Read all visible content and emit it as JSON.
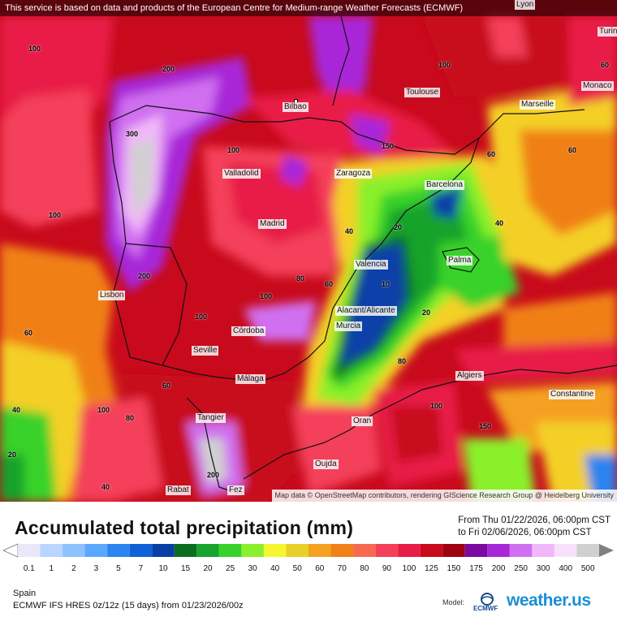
{
  "banner": "This service is based on data and products of the European Centre for Medium-range Weather Forecasts (ECMWF)",
  "attribution": "Map data © OpenStreetMap contributors, rendering GIScience Research Group @ Heidelberg University",
  "title": "Accumulated total precipitation (mm)",
  "period": {
    "from": "From Thu 01/22/2026, 06:00pm CST",
    "to": "to Fri 02/06/2026, 06:00pm CST"
  },
  "legend": {
    "values": [
      "0.1",
      "1",
      "2",
      "3",
      "5",
      "7",
      "10",
      "15",
      "20",
      "25",
      "30",
      "40",
      "50",
      "60",
      "70",
      "80",
      "90",
      "100",
      "125",
      "150",
      "175",
      "200",
      "250",
      "300",
      "400",
      "500"
    ],
    "colors": [
      "#e8e8f8",
      "#b8d6ff",
      "#8cc2ff",
      "#5aa8ff",
      "#2c84f0",
      "#1060d8",
      "#0a3fa8",
      "#0b6e1e",
      "#17a32c",
      "#37d22a",
      "#8af02c",
      "#f4f730",
      "#e8d028",
      "#f4a020",
      "#f08018",
      "#f86a50",
      "#f4405a",
      "#e81c46",
      "#c80a1c",
      "#a00010",
      "#7a0aa0",
      "#a828d8",
      "#d070f0",
      "#f0b8f8",
      "#f8e0fc",
      "#d0d0d0"
    ]
  },
  "cities": [
    {
      "name": "Bilbao"
    },
    {
      "name": "Toulouse"
    },
    {
      "name": "Marseille"
    },
    {
      "name": "Monaco"
    },
    {
      "name": "Valladolid"
    },
    {
      "name": "Zaragoza"
    },
    {
      "name": "Barcelona"
    },
    {
      "name": "Madrid"
    },
    {
      "name": "Lisbon"
    },
    {
      "name": "Valencia"
    },
    {
      "name": "Palma"
    },
    {
      "name": "Alacant/Alicante"
    },
    {
      "name": "Córdoba"
    },
    {
      "name": "Murcia"
    },
    {
      "name": "Seville"
    },
    {
      "name": "Málaga"
    },
    {
      "name": "Algiers"
    },
    {
      "name": "Constantine"
    },
    {
      "name": "Tangier"
    },
    {
      "name": "Oran"
    },
    {
      "name": "Oujda"
    },
    {
      "name": "Rabat"
    },
    {
      "name": "Fez"
    },
    {
      "name": "Lyon"
    },
    {
      "name": "Turin"
    }
  ],
  "contour_labels": [
    "100",
    "200",
    "300",
    "100",
    "60",
    "40",
    "20",
    "20",
    "40",
    "60",
    "80",
    "100",
    "150",
    "200",
    "60",
    "40",
    "20",
    "10",
    "60",
    "80",
    "100",
    "40",
    "60",
    "80",
    "100",
    "150",
    "200",
    "60",
    "100",
    "100",
    "100"
  ],
  "region": "Spain",
  "model": "ECMWF IFS HRES 0z/12z (15 days) from  01/23/2026/00z",
  "model_label": "Model:",
  "logo_text": "weather.",
  "logo_us": "us",
  "ecmwf_text": "ECMWF"
}
